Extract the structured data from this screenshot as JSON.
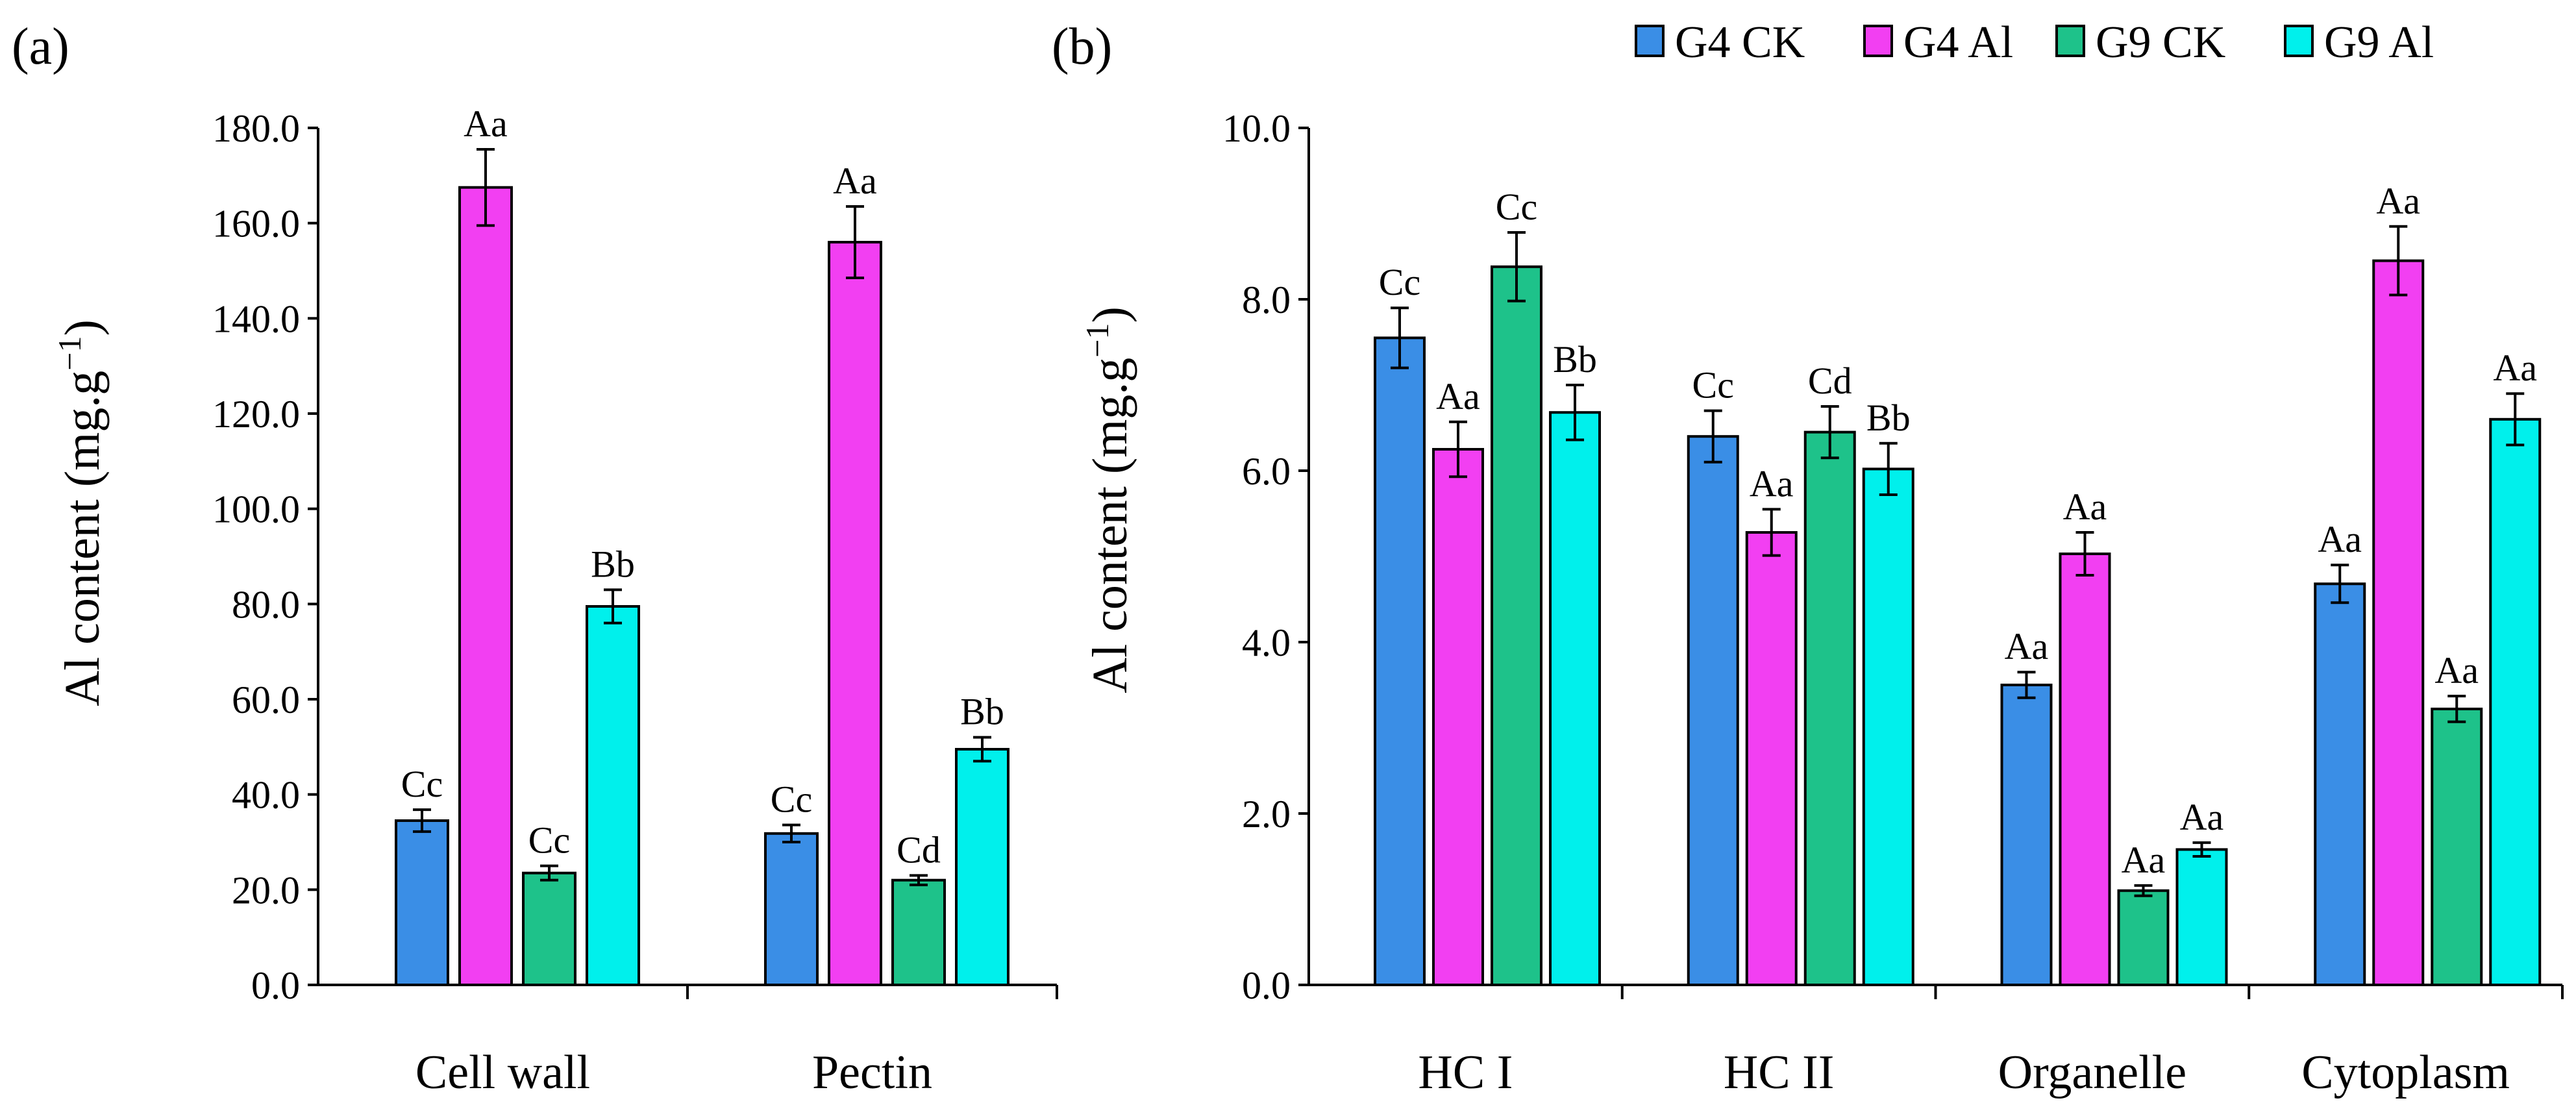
{
  "legend": [
    "G4 CK",
    "G4 Al",
    "G9 CK",
    "G9 Al"
  ],
  "colors": {
    "G4 CK": "#3a8ee6",
    "G4 Al": "#f23ff2",
    "G9 CK": "#1ec28a",
    "G9 Al": "#00f0ec"
  },
  "chart_data": [
    {
      "type": "bar",
      "panel_label": "(a)",
      "ylabel_main": "Al content (mg.g",
      "ylabel_sup": "−1",
      "ylabel_end": ")",
      "ylim": [
        0,
        180
      ],
      "yticks": [
        0,
        20,
        40,
        60,
        80,
        100,
        120,
        140,
        160,
        180
      ],
      "ytick_labels": [
        "0.0",
        "20.0",
        "40.0",
        "60.0",
        "80.0",
        "100.0",
        "120.0",
        "140.0",
        "160.0",
        "180.0"
      ],
      "categories": [
        "Cell wall",
        "Pectin"
      ],
      "series": [
        {
          "name": "G4 CK",
          "values": [
            34.5,
            31.8
          ],
          "errors": [
            2.3,
            1.8
          ],
          "labels": [
            "Cc",
            "Cc"
          ]
        },
        {
          "name": "G4 Al",
          "values": [
            167.5,
            156.0
          ],
          "errors": [
            8.0,
            7.5
          ],
          "labels": [
            "Aa",
            "Aa"
          ]
        },
        {
          "name": "G9 CK",
          "values": [
            23.5,
            22.0
          ],
          "errors": [
            1.5,
            1.0
          ],
          "labels": [
            "Cc",
            "Cd"
          ]
        },
        {
          "name": "G9 Al",
          "values": [
            79.5,
            49.5
          ],
          "errors": [
            3.5,
            2.5
          ],
          "labels": [
            "Bb",
            "Bb"
          ]
        }
      ]
    },
    {
      "type": "bar",
      "panel_label": "(b)",
      "ylabel_main": "Al content (mg.g",
      "ylabel_sup": "−1",
      "ylabel_end": ")",
      "ylim": [
        0,
        10
      ],
      "yticks": [
        0,
        2,
        4,
        6,
        8,
        10
      ],
      "ytick_labels": [
        "0.0",
        "2.0",
        "4.0",
        "6.0",
        "8.0",
        "10.0"
      ],
      "categories": [
        "HC I",
        "HC II",
        "Organelle",
        "Cytoplasm"
      ],
      "series": [
        {
          "name": "G4 CK",
          "values": [
            7.55,
            6.4,
            3.5,
            4.68
          ],
          "errors": [
            0.35,
            0.3,
            0.15,
            0.22
          ],
          "labels": [
            "Cc",
            "Cc",
            "Aa",
            "Aa"
          ]
        },
        {
          "name": "G4 Al",
          "values": [
            6.25,
            5.28,
            5.03,
            8.45
          ],
          "errors": [
            0.32,
            0.27,
            0.25,
            0.4
          ],
          "labels": [
            "Aa",
            "Aa",
            "Aa",
            "Aa"
          ]
        },
        {
          "name": "G9 CK",
          "values": [
            8.38,
            6.45,
            1.1,
            3.22
          ],
          "errors": [
            0.4,
            0.3,
            0.06,
            0.15
          ],
          "labels": [
            "Cc",
            "Cd",
            "Aa",
            "Aa"
          ]
        },
        {
          "name": "G9 Al",
          "values": [
            6.68,
            6.02,
            1.58,
            6.6
          ],
          "errors": [
            0.32,
            0.3,
            0.08,
            0.3
          ],
          "labels": [
            "Bb",
            "Bb",
            "Aa",
            "Aa"
          ]
        }
      ]
    }
  ]
}
